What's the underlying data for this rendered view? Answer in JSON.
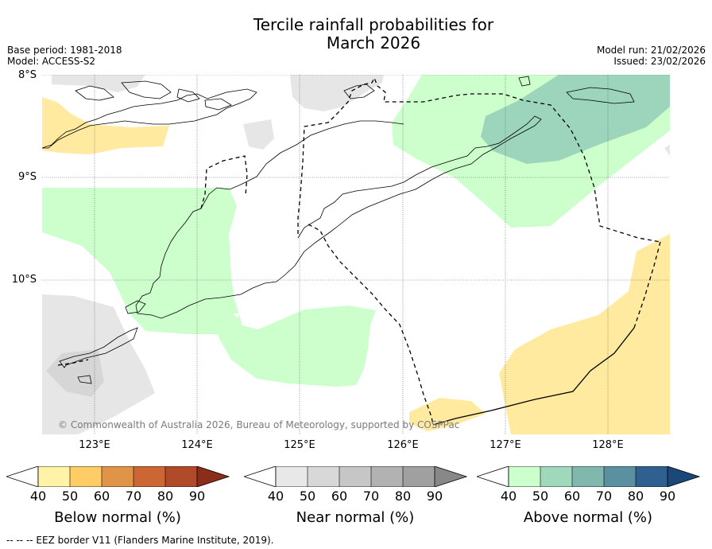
{
  "title_line1": "Tercile rainfall probabilities for",
  "title_line2": "March 2026",
  "base_period": "Base period: 1981-2018",
  "model": "Model: ACCESS-S2",
  "model_run": "Model run: 21/02/2026",
  "issued": "Issued: 23/02/2026",
  "lat_labels": [
    "8°S",
    "9°S",
    "10°S"
  ],
  "lon_labels": [
    "123°E",
    "124°E",
    "125°E",
    "126°E",
    "127°E",
    "128°E"
  ],
  "copyright": "© Commonwealth of Australia 2026, Bureau of Meteorology, supported by COSPPac",
  "legends": {
    "below": {
      "title": "Below normal (%)",
      "ticks": [
        "40",
        "50",
        "60",
        "70",
        "80",
        "90"
      ],
      "colors": [
        "#fff3a8",
        "#ffcc66",
        "#e09448",
        "#cc6633",
        "#b04a28",
        "#8c2d1a"
      ]
    },
    "near": {
      "title": "Near normal (%)",
      "ticks": [
        "40",
        "50",
        "60",
        "70",
        "80",
        "90"
      ],
      "colors": [
        "#e8e8e8",
        "#d8d8d8",
        "#c6c6c6",
        "#b2b2b2",
        "#a0a0a0",
        "#888888"
      ]
    },
    "above": {
      "title": "Above normal (%)",
      "ticks": [
        "40",
        "50",
        "60",
        "70",
        "80",
        "90"
      ],
      "colors": [
        "#ccffcc",
        "#a0d8bc",
        "#80b8ae",
        "#5a90a0",
        "#306090",
        "#1a4878"
      ]
    }
  },
  "footnote": "--  --  -- EEZ border V11 (Flanders Marine Institute, 2019).",
  "colors": {
    "below_40": "#ffeaa0",
    "near_40": "#e6e6e6",
    "near_50": "#d6d6d6",
    "above_40": "#ccffcc",
    "above_50": "#9dd4bc",
    "above_60": "#8fc4b0"
  }
}
